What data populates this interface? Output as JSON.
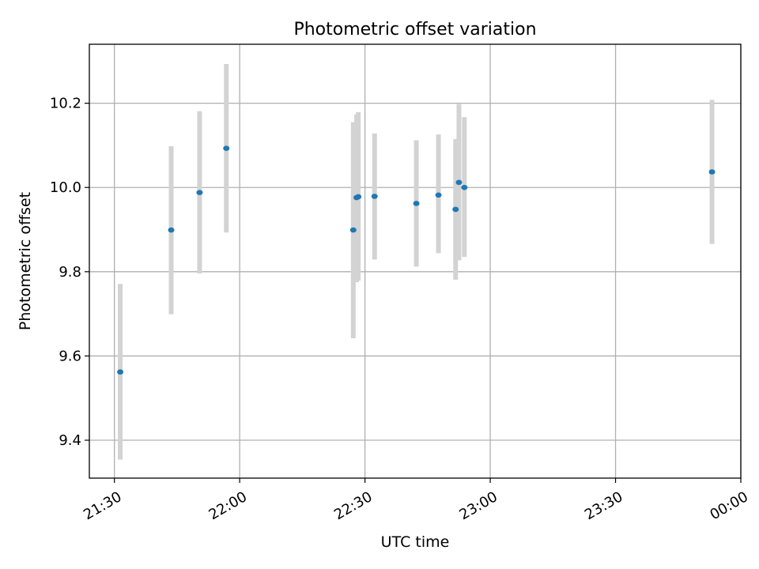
{
  "chart_data": {
    "type": "scatter",
    "title": "Photometric offset variation",
    "xlabel": "UTC time",
    "ylabel": "Photometric offset",
    "x_unit": "minutes after 21:30 UTC",
    "xlim": [
      -6,
      150
    ],
    "ylim": [
      9.31,
      10.34
    ],
    "grid": true,
    "x_ticks": [
      {
        "value": 0,
        "label": "21:30"
      },
      {
        "value": 30,
        "label": "22:00"
      },
      {
        "value": 60,
        "label": "22:30"
      },
      {
        "value": 90,
        "label": "23:00"
      },
      {
        "value": 120,
        "label": "23:30"
      },
      {
        "value": 150,
        "label": "00:00"
      }
    ],
    "y_ticks": [
      {
        "value": 9.4,
        "label": "9.4"
      },
      {
        "value": 9.6,
        "label": "9.6"
      },
      {
        "value": 9.8,
        "label": "9.8"
      },
      {
        "value": 10.0,
        "label": "10.0"
      },
      {
        "value": 10.2,
        "label": "10.2"
      }
    ],
    "point_color": "#1f77b4",
    "errorbar_color": "#d3d3d3",
    "points": [
      {
        "x": 1.4,
        "y": 9.562,
        "ylow": 9.354,
        "yhigh": 9.771
      },
      {
        "x": 13.6,
        "y": 9.899,
        "ylow": 9.699,
        "yhigh": 10.098
      },
      {
        "x": 20.4,
        "y": 9.988,
        "ylow": 9.796,
        "yhigh": 10.181
      },
      {
        "x": 26.8,
        "y": 10.093,
        "ylow": 9.893,
        "yhigh": 10.293
      },
      {
        "x": 57.2,
        "y": 9.899,
        "ylow": 9.642,
        "yhigh": 10.155
      },
      {
        "x": 58.0,
        "y": 9.976,
        "ylow": 9.775,
        "yhigh": 10.173
      },
      {
        "x": 58.4,
        "y": 9.978,
        "ylow": 9.779,
        "yhigh": 10.179
      },
      {
        "x": 62.3,
        "y": 9.979,
        "ylow": 9.829,
        "yhigh": 10.128
      },
      {
        "x": 72.3,
        "y": 9.962,
        "ylow": 9.812,
        "yhigh": 10.112
      },
      {
        "x": 77.6,
        "y": 9.982,
        "ylow": 9.844,
        "yhigh": 10.126
      },
      {
        "x": 81.7,
        "y": 9.948,
        "ylow": 9.781,
        "yhigh": 10.115
      },
      {
        "x": 82.5,
        "y": 10.012,
        "ylow": 9.827,
        "yhigh": 10.198
      },
      {
        "x": 83.8,
        "y": 10.0,
        "ylow": 9.835,
        "yhigh": 10.167
      },
      {
        "x": 143.1,
        "y": 10.037,
        "ylow": 9.866,
        "yhigh": 10.208
      }
    ]
  }
}
